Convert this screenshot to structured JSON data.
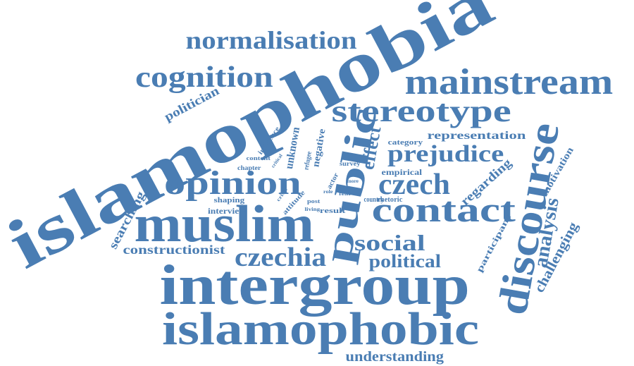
{
  "colors": {
    "word": "#4a7db3",
    "background": "#ffffff"
  },
  "words": [
    {
      "text": "islamophobia"
    },
    {
      "text": "intergroup"
    },
    {
      "text": "islamophobic"
    },
    {
      "text": "muslim"
    },
    {
      "text": "mainstream"
    },
    {
      "text": "discourse"
    },
    {
      "text": "public"
    },
    {
      "text": "opinion"
    },
    {
      "text": "contact"
    },
    {
      "text": "stereotype"
    },
    {
      "text": "cognition"
    },
    {
      "text": "normalisation"
    },
    {
      "text": "czech"
    },
    {
      "text": "czechia"
    },
    {
      "text": "prejudice"
    },
    {
      "text": "social"
    },
    {
      "text": "political"
    },
    {
      "text": "analysis"
    },
    {
      "text": "effect"
    },
    {
      "text": "challenging"
    },
    {
      "text": "politician"
    },
    {
      "text": "understanding"
    },
    {
      "text": "constructionist"
    },
    {
      "text": "regarding"
    },
    {
      "text": "searching"
    },
    {
      "text": "representation"
    },
    {
      "text": "unknown"
    },
    {
      "text": "negative"
    },
    {
      "text": "motivation"
    },
    {
      "text": "participant"
    },
    {
      "text": "empirical"
    },
    {
      "text": "category"
    },
    {
      "text": "interview"
    },
    {
      "text": "shaping"
    },
    {
      "text": "influence"
    },
    {
      "text": "refugee"
    },
    {
      "text": "rhetoric"
    },
    {
      "text": "country"
    },
    {
      "text": "survey"
    },
    {
      "text": "result"
    },
    {
      "text": "attitude"
    },
    {
      "text": "actor"
    },
    {
      "text": "chapter"
    },
    {
      "text": "content"
    },
    {
      "text": "critical"
    },
    {
      "text": "fear"
    },
    {
      "text": "living"
    },
    {
      "text": "post"
    },
    {
      "text": "crisis"
    },
    {
      "text": "role"
    },
    {
      "text": "more"
    }
  ]
}
